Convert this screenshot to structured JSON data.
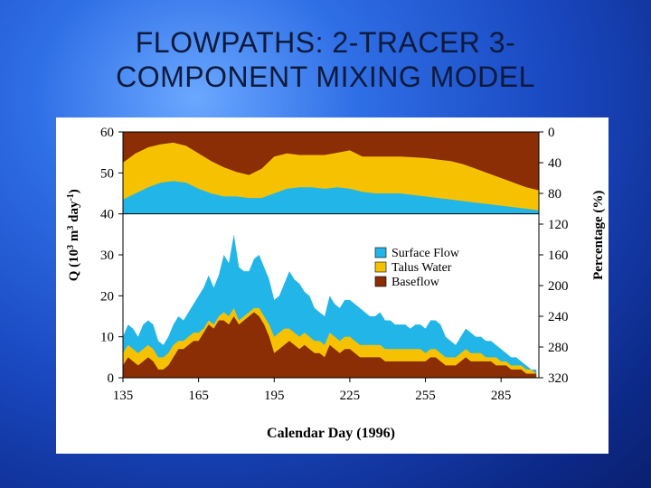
{
  "slide": {
    "title_line1": "FLOWPATHS: 2-TRACER 3-",
    "title_line2": "COMPONENT MIXING MODEL"
  },
  "chart_data": {
    "type": "area",
    "title": "",
    "xlabel": "Calendar Day (1996)",
    "ylabel_left": "Q (10^3 m^3 day^-1)",
    "ylabel_right": "Percentage (%)",
    "xlim": [
      135,
      300
    ],
    "ylim": [
      0,
      60
    ],
    "xticks": [
      135,
      165,
      195,
      225,
      255,
      285
    ],
    "yticks_left": [
      0,
      10,
      20,
      30,
      40,
      50,
      60
    ],
    "yticks_right": [
      320,
      280,
      240,
      200,
      160,
      120,
      80,
      40,
      0
    ],
    "legend_position": "center-right",
    "colors": {
      "Surface Flow": "#22b5e8",
      "Talus Water": "#f6c200",
      "Baseflow": "#8b2d05"
    },
    "legend": [
      "Surface Flow",
      "Talus Water",
      "Baseflow"
    ],
    "upper_panel_percentage": {
      "description_axis": "right axis 0-120 %",
      "x": [
        135,
        140,
        145,
        150,
        155,
        160,
        165,
        170,
        175,
        180,
        185,
        190,
        195,
        200,
        205,
        210,
        215,
        220,
        225,
        230,
        235,
        240,
        245,
        250,
        255,
        260,
        265,
        270,
        275,
        280,
        285,
        290,
        295,
        300
      ],
      "baseflow_pct": [
        0,
        0,
        0,
        0,
        0,
        0,
        0,
        0,
        0,
        0,
        0,
        0,
        0,
        0,
        0,
        0,
        0,
        0,
        0,
        0,
        0,
        0,
        0,
        0,
        0,
        0,
        0,
        0,
        0,
        0,
        0,
        0,
        0,
        0
      ],
      "baseflow_top_pct": [
        0,
        0,
        0,
        0,
        0,
        0,
        0,
        0,
        0,
        0,
        0,
        0,
        0,
        0,
        0,
        0,
        0,
        0,
        0,
        0,
        0,
        0,
        0,
        0,
        0,
        0,
        0,
        0,
        0,
        0,
        0,
        0,
        0,
        0
      ],
      "baseflow_bottom_pct": [
        40,
        28,
        20,
        16,
        14,
        18,
        28,
        38,
        46,
        52,
        56,
        48,
        32,
        28,
        30,
        30,
        30,
        27,
        24,
        32,
        32,
        32,
        32,
        33,
        34,
        36,
        38,
        42,
        48,
        54,
        60,
        66,
        72,
        76
      ],
      "talus_bottom_pct": [
        88,
        80,
        72,
        66,
        64,
        66,
        74,
        80,
        84,
        84,
        86,
        86,
        80,
        74,
        72,
        72,
        74,
        72,
        74,
        78,
        80,
        80,
        80,
        82,
        84,
        86,
        88,
        90,
        92,
        94,
        96,
        98,
        100,
        102
      ]
    },
    "series": [
      {
        "name": "Surface Flow",
        "x": [
          135,
          137,
          139,
          141,
          143,
          145,
          147,
          149,
          151,
          153,
          155,
          157,
          159,
          161,
          163,
          165,
          167,
          169,
          171,
          173,
          175,
          177,
          179,
          181,
          183,
          185,
          187,
          189,
          191,
          193,
          195,
          197,
          199,
          201,
          203,
          205,
          207,
          209,
          211,
          213,
          215,
          217,
          219,
          221,
          223,
          225,
          227,
          229,
          231,
          233,
          235,
          237,
          239,
          241,
          243,
          245,
          247,
          249,
          251,
          253,
          255,
          257,
          259,
          261,
          263,
          265,
          267,
          269,
          271,
          273,
          275,
          277,
          279,
          281,
          283,
          285,
          287,
          289,
          291,
          293,
          295,
          297,
          299
        ],
        "values": [
          10,
          13,
          12,
          10,
          13,
          14,
          13,
          9,
          8,
          10,
          13,
          15,
          14,
          16,
          18,
          20,
          22,
          25,
          22,
          25,
          30,
          28,
          35,
          27,
          26,
          26,
          29,
          30,
          27,
          24,
          19,
          20,
          23,
          26,
          24,
          23,
          21,
          20,
          17,
          16,
          15,
          20,
          18,
          17,
          19,
          19,
          18,
          17,
          16,
          15,
          15,
          16,
          14,
          14,
          13,
          13,
          13,
          12,
          13,
          13,
          12,
          14,
          14,
          13,
          10,
          9,
          8,
          10,
          12,
          11,
          10,
          10,
          9,
          9,
          8,
          7,
          6,
          5,
          5,
          4,
          3,
          2,
          2
        ]
      },
      {
        "name": "Talus Water",
        "x": [
          135,
          137,
          139,
          141,
          143,
          145,
          147,
          149,
          151,
          153,
          155,
          157,
          159,
          161,
          163,
          165,
          167,
          169,
          171,
          173,
          175,
          177,
          179,
          181,
          183,
          185,
          187,
          189,
          191,
          193,
          195,
          197,
          199,
          201,
          203,
          205,
          207,
          209,
          211,
          213,
          215,
          217,
          219,
          221,
          223,
          225,
          227,
          229,
          231,
          233,
          235,
          237,
          239,
          241,
          243,
          245,
          247,
          249,
          251,
          253,
          255,
          257,
          259,
          261,
          263,
          265,
          267,
          269,
          271,
          273,
          275,
          277,
          279,
          281,
          283,
          285,
          287,
          289,
          291,
          293,
          295,
          297,
          299
        ],
        "values": [
          6,
          8,
          7,
          6,
          7,
          8,
          7,
          5,
          5,
          6,
          8,
          9,
          9,
          10,
          11,
          11,
          12,
          14,
          13,
          15,
          16,
          15,
          17,
          14,
          15,
          16,
          17,
          17,
          15,
          13,
          10,
          11,
          12,
          12,
          11,
          10,
          11,
          10,
          9,
          9,
          8,
          11,
          10,
          9,
          10,
          10,
          9,
          8,
          8,
          8,
          8,
          8,
          7,
          7,
          7,
          7,
          7,
          7,
          7,
          7,
          6,
          7,
          7,
          6,
          5,
          5,
          5,
          6,
          7,
          6,
          6,
          6,
          5,
          5,
          5,
          4,
          4,
          3,
          3,
          3,
          2,
          2,
          1
        ]
      },
      {
        "name": "Baseflow",
        "x": [
          135,
          137,
          139,
          141,
          143,
          145,
          147,
          149,
          151,
          153,
          155,
          157,
          159,
          161,
          163,
          165,
          167,
          169,
          171,
          173,
          175,
          177,
          179,
          181,
          183,
          185,
          187,
          189,
          191,
          193,
          195,
          197,
          199,
          201,
          203,
          205,
          207,
          209,
          211,
          213,
          215,
          217,
          219,
          221,
          223,
          225,
          227,
          229,
          231,
          233,
          235,
          237,
          239,
          241,
          243,
          245,
          247,
          249,
          251,
          253,
          255,
          257,
          259,
          261,
          263,
          265,
          267,
          269,
          271,
          273,
          275,
          277,
          279,
          281,
          283,
          285,
          287,
          289,
          291,
          293,
          295,
          297,
          299
        ],
        "values": [
          3,
          5,
          4,
          3,
          4,
          5,
          4,
          2,
          2,
          3,
          5,
          7,
          7,
          8,
          9,
          9,
          11,
          13,
          12,
          14,
          14,
          13,
          15,
          13,
          14,
          15,
          16,
          15,
          13,
          10,
          6,
          7,
          8,
          9,
          8,
          7,
          8,
          7,
          6,
          6,
          5,
          8,
          7,
          6,
          7,
          7,
          6,
          5,
          5,
          5,
          5,
          5,
          4,
          4,
          4,
          4,
          4,
          4,
          4,
          4,
          4,
          5,
          5,
          4,
          3,
          3,
          3,
          4,
          5,
          4,
          4,
          4,
          4,
          4,
          3,
          3,
          3,
          2,
          2,
          2,
          1,
          1,
          1
        ]
      }
    ]
  }
}
